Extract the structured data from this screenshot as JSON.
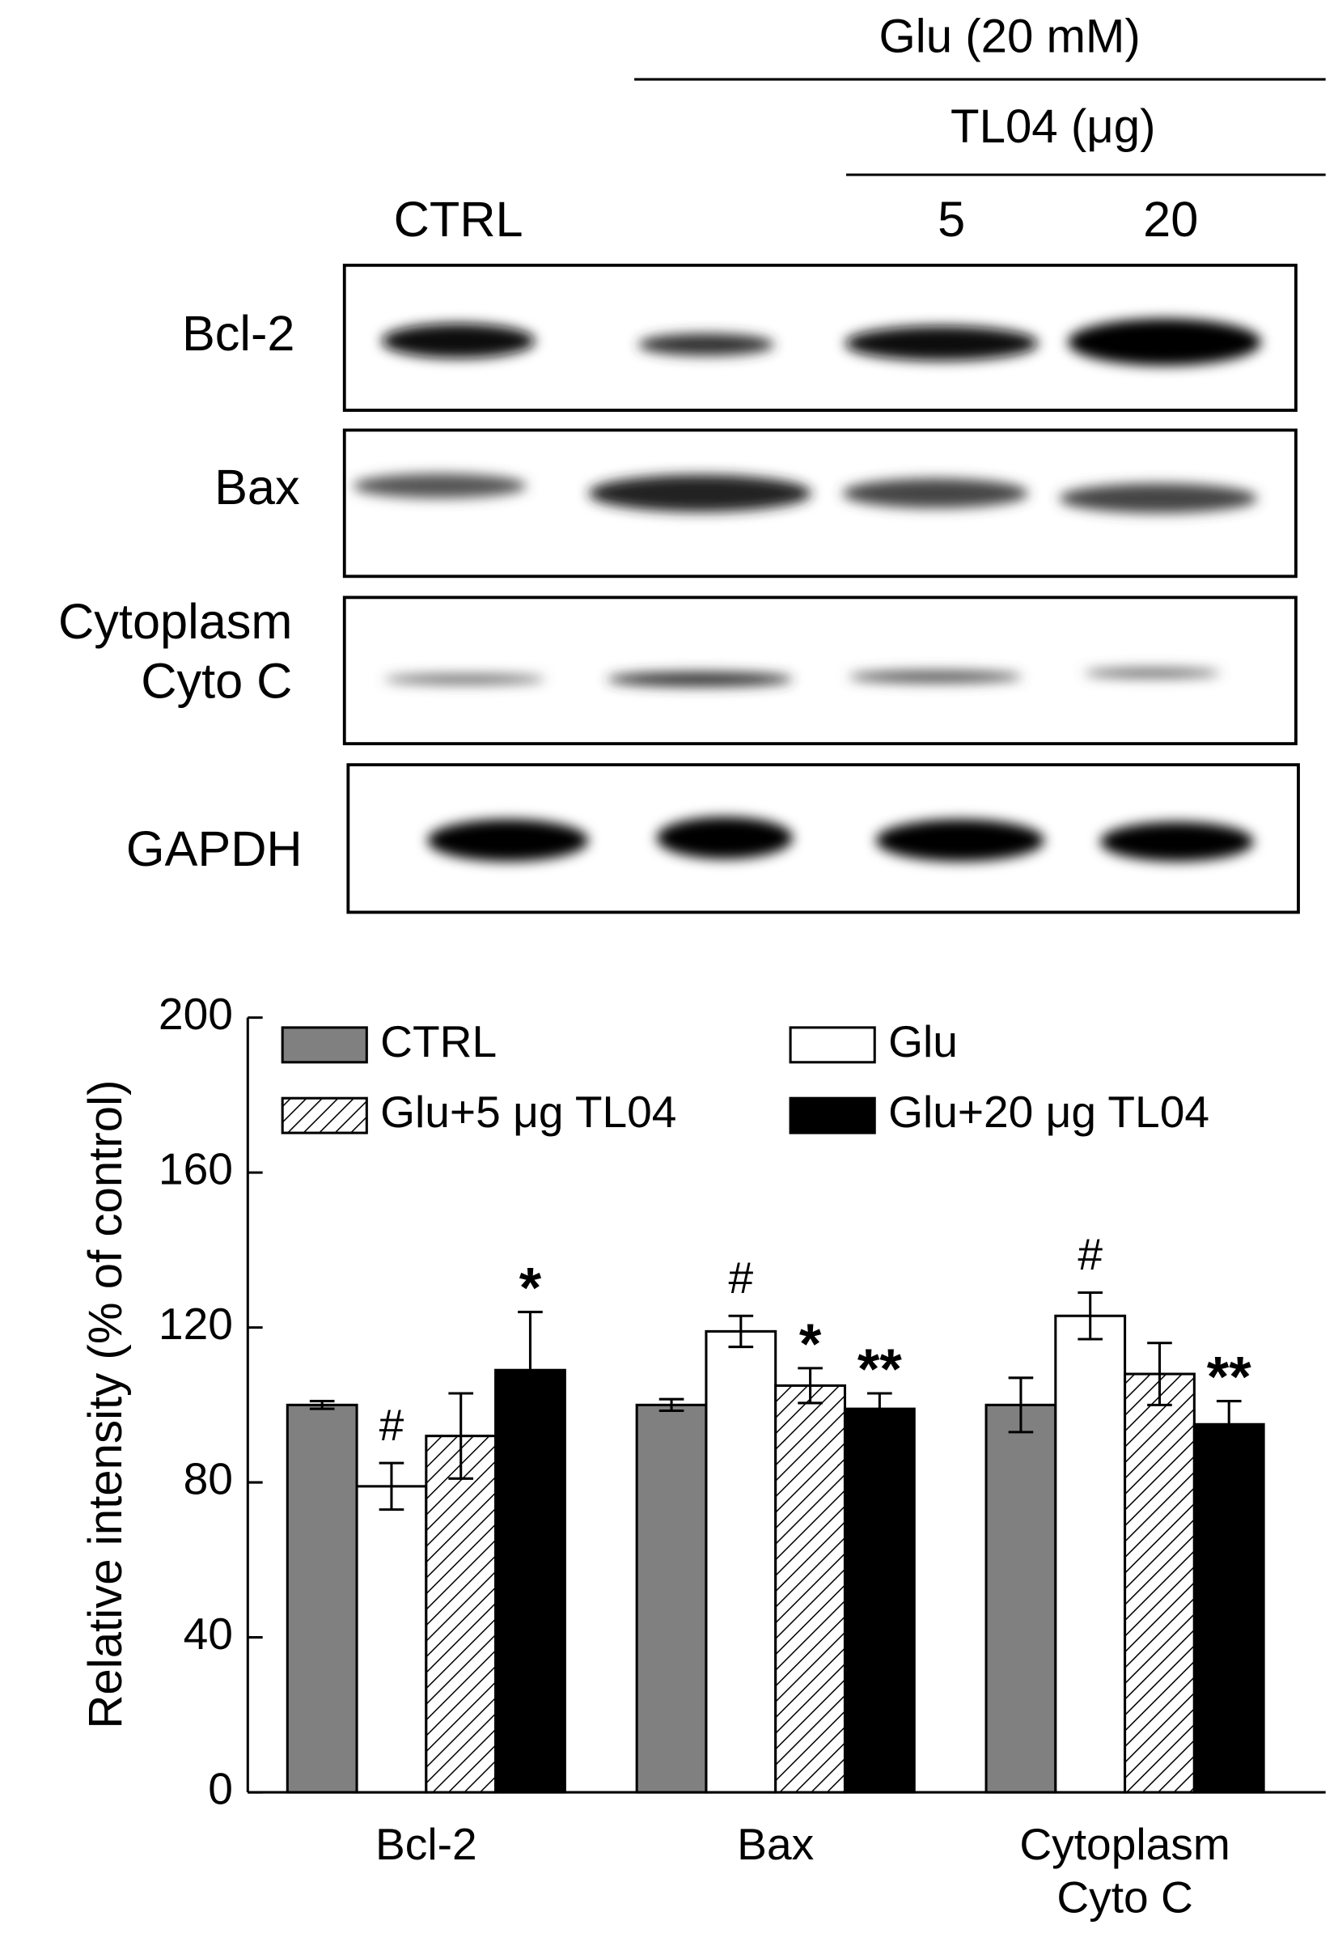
{
  "blot": {
    "header": "Glu (20 mM)",
    "subheader": "TL04 (μg)",
    "lanes": [
      "CTRL",
      "5",
      "20"
    ],
    "rows": [
      "Bcl-2",
      "Bax",
      "Cytoplasm\nCyto C",
      "GAPDH"
    ]
  },
  "chart_data": {
    "type": "bar",
    "ylabel": "Relative intensity (% of control)",
    "categories": [
      "Bcl-2",
      "Bax",
      "Cytoplasm\nCyto C"
    ],
    "ylim": [
      0,
      200
    ],
    "yticks": [
      0,
      40,
      80,
      120,
      160,
      200
    ],
    "grid": false,
    "legend": "top",
    "series": [
      {
        "name": "CTRL",
        "color": "#808080",
        "values": [
          100,
          100,
          100
        ],
        "errors": [
          1,
          1.5,
          7
        ],
        "annotations": [
          null,
          null,
          null
        ]
      },
      {
        "name": "Glu",
        "color": "#ffffff",
        "values": [
          79,
          119,
          123
        ],
        "errors": [
          6,
          4,
          6
        ],
        "annotations": [
          "#",
          "#",
          "#"
        ]
      },
      {
        "name": "Glu+5 μg TL04",
        "color": "#ffffff",
        "pattern": "hatch",
        "values": [
          92,
          105,
          108
        ],
        "errors": [
          11,
          4.5,
          8
        ],
        "annotations": [
          null,
          "*",
          null
        ]
      },
      {
        "name": "Glu+20 μg TL04",
        "color": "#000000",
        "values": [
          109,
          99,
          95
        ],
        "errors": [
          15,
          4,
          6
        ],
        "annotations": [
          "*",
          "**",
          "**"
        ]
      }
    ]
  }
}
